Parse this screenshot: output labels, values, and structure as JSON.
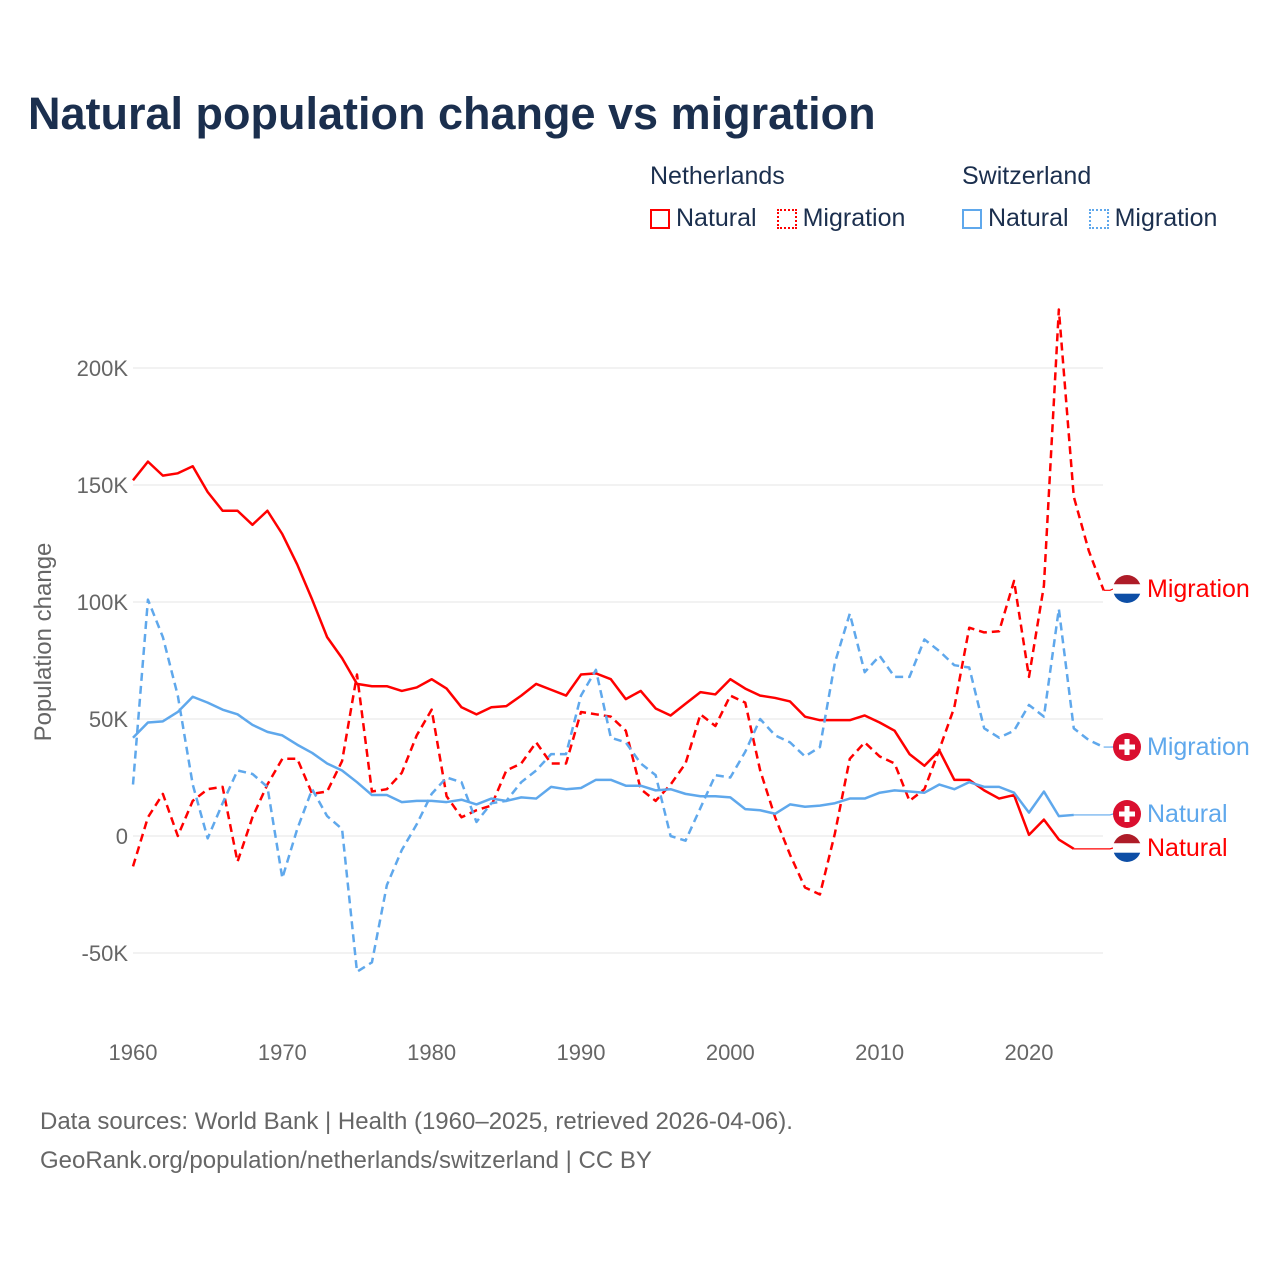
{
  "title": "Natural population change vs migration",
  "legend": {
    "groups": [
      {
        "name": "Netherlands",
        "items": [
          "Natural",
          "Migration"
        ],
        "color": "#ff0000"
      },
      {
        "name": "Switzerland",
        "items": [
          "Natural",
          "Migration"
        ],
        "color": "#5fa8ec"
      }
    ]
  },
  "footer": {
    "line1": "Data sources: World Bank | Health (1960–2025, retrieved 2026-04-06).",
    "line2": "GeoRank.org/population/netherlands/switzerland | CC BY"
  },
  "chart_data": {
    "type": "line",
    "title": "Natural population change vs migration",
    "xlabel": "",
    "ylabel": "Population change",
    "xlim": [
      1960,
      2025
    ],
    "ylim": [
      -75000,
      230000
    ],
    "yticks": [
      -50000,
      0,
      50000,
      100000,
      150000,
      200000
    ],
    "ytick_labels": [
      "-50K",
      "0",
      "50K",
      "100K",
      "150K",
      "200K"
    ],
    "xticks": [
      1960,
      1970,
      1980,
      1990,
      2000,
      2010,
      2020
    ],
    "xtick_labels": [
      "1960",
      "1970",
      "1980",
      "1990",
      "2000",
      "2010",
      "2020"
    ],
    "grid": true,
    "legend_position": "top-right",
    "series": [
      {
        "name": "Netherlands Natural",
        "label": "Natural",
        "flag": "netherlands",
        "color": "#ff0000",
        "dash": false,
        "start": 1960,
        "values": [
          152000,
          160000,
          154000,
          155000,
          158000,
          147000,
          139000,
          139000,
          133000,
          139000,
          129000,
          116000,
          101000,
          85000,
          76000,
          65000,
          64000,
          64000,
          62000,
          63500,
          67000,
          63000,
          55000,
          52000,
          55000,
          55500,
          60000,
          65000,
          62500,
          60000,
          69000,
          69500,
          67000,
          58500,
          62000,
          54500,
          51500,
          56500,
          61500,
          60500,
          67000,
          63000,
          60000,
          59000,
          57500,
          51000,
          49500,
          49500,
          49500,
          51500,
          48500,
          45000,
          35000,
          30000,
          36500,
          24000,
          24000,
          19500,
          16000,
          17500,
          500,
          7000,
          -1500,
          -5500
        ]
      },
      {
        "name": "Netherlands Migration",
        "label": "Migration",
        "flag": "netherlands",
        "color": "#ff0000",
        "dash": true,
        "start": 1960,
        "values": [
          -13000,
          8000,
          18000,
          0,
          15000,
          20000,
          21000,
          -11000,
          8000,
          22000,
          33000,
          33000,
          18000,
          19000,
          32000,
          69000,
          19000,
          20000,
          27000,
          43000,
          54000,
          17000,
          8000,
          11000,
          13000,
          28000,
          31000,
          40000,
          31000,
          31000,
          53000,
          52000,
          51000,
          45000,
          20000,
          15000,
          22000,
          31000,
          52000,
          47000,
          60000,
          57000,
          28000,
          8000,
          -8000,
          -22000,
          -25000,
          1000,
          33000,
          40000,
          34000,
          31000,
          15000,
          20000,
          37000,
          55000,
          89000,
          87000,
          87500,
          109000,
          68000,
          107000,
          225000,
          145000,
          122000,
          105000
        ]
      },
      {
        "name": "Switzerland Natural",
        "label": "Natural",
        "flag": "switzerland",
        "color": "#5fa8ec",
        "dash": false,
        "start": 1960,
        "values": [
          42000,
          48500,
          49000,
          53000,
          59500,
          57000,
          54000,
          52000,
          47500,
          44500,
          43000,
          39000,
          35500,
          31000,
          28000,
          23000,
          17500,
          17500,
          14500,
          15000,
          15000,
          14500,
          15500,
          13500,
          16000,
          15000,
          16500,
          16000,
          21000,
          20000,
          20500,
          24000,
          24000,
          21500,
          21500,
          19500,
          20000,
          18000,
          17000,
          17000,
          16500,
          11500,
          11000,
          9500,
          13500,
          12500,
          13000,
          14000,
          16000,
          16000,
          18500,
          19500,
          19000,
          18500,
          22000,
          20000,
          23000,
          21000,
          21000,
          18500,
          10000,
          19000,
          8500,
          9000
        ]
      },
      {
        "name": "Switzerland Migration",
        "label": "Migration",
        "flag": "switzerland",
        "color": "#5fa8ec",
        "dash": true,
        "start": 1960,
        "values": [
          22000,
          101000,
          85000,
          60000,
          22000,
          -1000,
          14000,
          28000,
          26500,
          21000,
          -18000,
          3000,
          20000,
          8500,
          3000,
          -58000,
          -54000,
          -21000,
          -6000,
          5000,
          18000,
          25000,
          23000,
          6000,
          14000,
          15000,
          23000,
          28000,
          35000,
          35000,
          60000,
          71000,
          42000,
          40000,
          31000,
          26000,
          0,
          -2000,
          12000,
          26000,
          25000,
          36000,
          50000,
          43000,
          40000,
          34000,
          38000,
          74000,
          95000,
          70000,
          77000,
          68000,
          68000,
          84000,
          79000,
          73000,
          72000,
          46000,
          42000,
          45000,
          56000,
          51000,
          97000,
          46000,
          41000,
          38000
        ]
      }
    ]
  }
}
